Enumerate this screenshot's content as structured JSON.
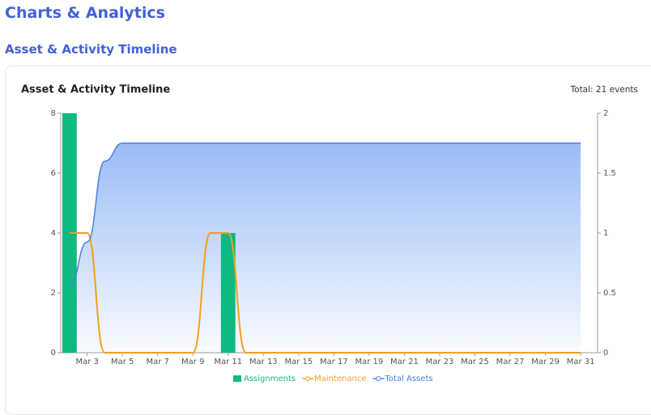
{
  "page_title": "Charts & Analytics",
  "section_title": "Asset & Activity Timeline",
  "chart_data": {
    "type": "combo",
    "title": "Asset & Activity Timeline",
    "annotation": "Total: 21 events",
    "categories": [
      null,
      "Mar 3",
      null,
      "Mar 5",
      null,
      "Mar 7",
      null,
      "Mar 9",
      null,
      "Mar 11",
      null,
      "Mar 13",
      null,
      "Mar 15",
      null,
      "Mar 17",
      null,
      "Mar 19",
      null,
      "Mar 21",
      null,
      "Mar 23",
      null,
      "Mar 25",
      null,
      "Mar 27",
      null,
      "Mar 29",
      null,
      "Mar 31"
    ],
    "series": [
      {
        "name": "Assignments",
        "type": "bar",
        "color": "#10b981",
        "axis": "y",
        "values": [
          8,
          0,
          0,
          0,
          0,
          0,
          0,
          0,
          0,
          4,
          0,
          0,
          0,
          0,
          0,
          0,
          0,
          0,
          0,
          0,
          0,
          0,
          0,
          0,
          0,
          0,
          0,
          0,
          0,
          0
        ]
      },
      {
        "name": "Maintenance",
        "type": "line",
        "color": "#f0a020",
        "axis": "y2",
        "values": [
          1,
          1,
          0,
          0,
          0,
          0,
          0,
          0,
          1,
          1,
          0,
          0,
          0,
          0,
          0,
          0,
          0,
          0,
          0,
          0,
          0,
          0,
          0,
          0,
          0,
          0,
          0,
          0,
          0,
          0
        ]
      },
      {
        "name": "Total Assets",
        "type": "area",
        "color": "#4a80dc",
        "axis": "y",
        "values": [
          2.2,
          3.7,
          6.4,
          7,
          7,
          7,
          7,
          7,
          7,
          7,
          7,
          7,
          7,
          7,
          7,
          7,
          7,
          7,
          7,
          7,
          7,
          7,
          7,
          7,
          7,
          7,
          7,
          7,
          7,
          7
        ]
      }
    ],
    "ylim": [
      0,
      8
    ],
    "yticks": [
      0,
      2,
      4,
      6,
      8
    ],
    "y2lim": [
      0,
      2
    ],
    "y2ticks": [
      0,
      0.5,
      1,
      1.5,
      2
    ],
    "legend": "bottom"
  }
}
